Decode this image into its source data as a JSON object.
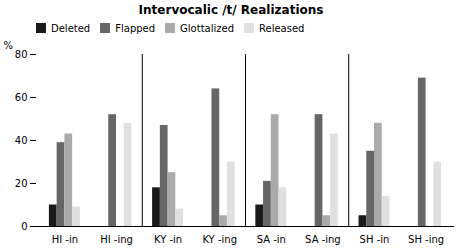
{
  "chart_data": {
    "type": "bar",
    "title": "Intervocalic /t/ Realizations",
    "ylabel": "%",
    "categories": [
      "HI -in",
      "HI -ing",
      "KY -in",
      "KY -ing",
      "SA -in",
      "SA -ing",
      "SH -in",
      "SH -ing"
    ],
    "series": [
      {
        "name": "Deleted",
        "color": "#1a1a1a",
        "values": [
          10,
          0,
          18,
          0,
          10,
          0,
          5,
          0
        ]
      },
      {
        "name": "Flapped",
        "color": "#666666",
        "values": [
          39,
          52,
          47,
          64,
          21,
          52,
          35,
          69
        ]
      },
      {
        "name": "Glottalized",
        "color": "#aaaaaa",
        "values": [
          43,
          0,
          25,
          5,
          52,
          5,
          48,
          0
        ]
      },
      {
        "name": "Released",
        "color": "#e0e0e0",
        "values": [
          9,
          48,
          8,
          30,
          18,
          43,
          14,
          30
        ]
      }
    ],
    "ylim": [
      0,
      80
    ],
    "yticks": [
      0,
      20,
      40,
      60,
      80
    ],
    "grid": false,
    "legend": "upper left"
  }
}
